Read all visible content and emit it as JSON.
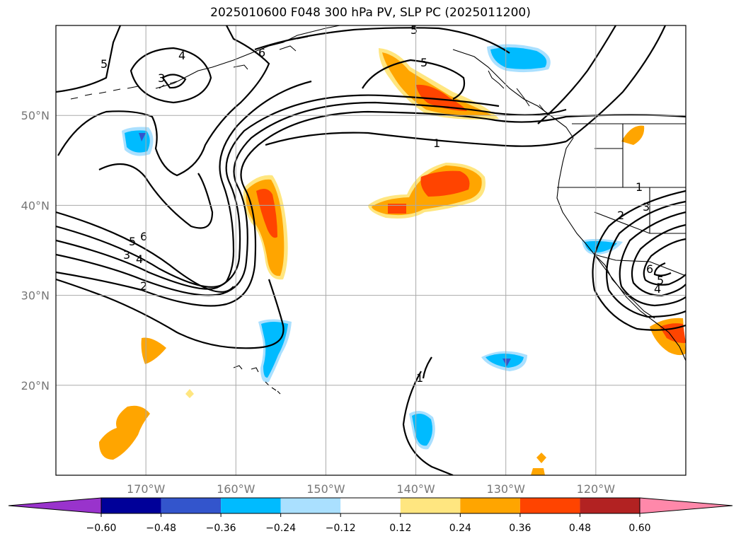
{
  "title": "2025010600 F048 300 hPa PV, SLP PC (2025011200)",
  "chart_data": {
    "type": "contour-map",
    "title": "2025010600 F048 300 hPa PV, SLP PC (2025011200)",
    "lon_range": [
      -180,
      -110
    ],
    "lat_range": [
      10,
      60
    ],
    "grid": true,
    "lon_ticks": [
      "170°W",
      "160°W",
      "150°W",
      "140°W",
      "130°W",
      "120°W"
    ],
    "lat_ticks": [
      "50°N",
      "40°N",
      "30°N",
      "20°N"
    ],
    "colorbar": {
      "ticks": [
        "−0.60",
        "−0.48",
        "−0.36",
        "−0.24",
        "−0.12",
        "0.12",
        "0.24",
        "0.36",
        "0.48",
        "0.60"
      ],
      "colors": [
        "#9933cc",
        "#000099",
        "#3355cc",
        "#00bbff",
        "#aae0ff",
        "#ffffff",
        "#ffe680",
        "#ffa500",
        "#ff4400",
        "#b22222",
        "#ff88aa"
      ]
    },
    "contour_labels": [
      "5",
      "4",
      "3",
      "6",
      "5",
      "5",
      "1",
      "6",
      "5",
      "3",
      "4",
      "2",
      "1",
      "1",
      "2",
      "3",
      "6",
      "5",
      "4"
    ]
  }
}
